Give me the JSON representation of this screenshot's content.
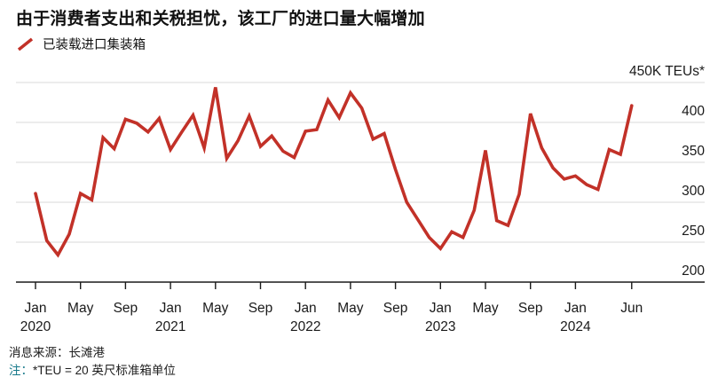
{
  "title": "由于消费者支出和关税担忧，该工厂的进口量大幅增加",
  "legend": {
    "label": "已装载进口集装箱"
  },
  "footer": {
    "source": "消息来源：长滩港",
    "note_prefix": "注：",
    "note_body": "*TEU = 20 英尺标准箱单位"
  },
  "colors": {
    "line": "#c23128",
    "grid": "#d8d8d8",
    "axis": "#1a1a1a",
    "tick_text": "#1a1a1a",
    "title_text": "#111111"
  },
  "chart_data": {
    "type": "line",
    "title": "由于消费者支出和关税担忧，该工厂的进口量大幅增加",
    "ylabel": "450K TEUs*",
    "xlabel": "",
    "ylim": [
      200,
      450
    ],
    "grid": true,
    "legend_position": "top-left",
    "y_ticks": [
      450,
      400,
      350,
      300,
      250,
      200
    ],
    "y_tick_labels": [
      "450K TEUs*",
      "400",
      "350",
      "300",
      "250",
      "200"
    ],
    "x_ticks": [
      {
        "month": "Jan",
        "year": "2020",
        "offset": 0
      },
      {
        "month": "May",
        "year": "",
        "offset": 4
      },
      {
        "month": "Sep",
        "year": "",
        "offset": 8
      },
      {
        "month": "Jan",
        "year": "2021",
        "offset": 12
      },
      {
        "month": "May",
        "year": "",
        "offset": 16
      },
      {
        "month": "Sep",
        "year": "",
        "offset": 20
      },
      {
        "month": "Jan",
        "year": "2022",
        "offset": 24
      },
      {
        "month": "May",
        "year": "",
        "offset": 28
      },
      {
        "month": "Sep",
        "year": "",
        "offset": 32
      },
      {
        "month": "Jan",
        "year": "2023",
        "offset": 36
      },
      {
        "month": "May",
        "year": "",
        "offset": 40
      },
      {
        "month": "Sep",
        "year": "",
        "offset": 44
      },
      {
        "month": "Jan",
        "year": "2024",
        "offset": 48
      },
      {
        "month": "Jun",
        "year": "",
        "offset": 53
      }
    ],
    "x_range": {
      "start": "Jan 2020",
      "end": "Jun 2024",
      "points": "monthly"
    },
    "series": [
      {
        "name": "已装载进口集装箱",
        "unit": "K TEUs",
        "values": [
          311,
          252,
          234,
          260,
          311,
          303,
          381,
          367,
          404,
          399,
          388,
          405,
          366,
          388,
          409,
          368,
          444,
          355,
          377,
          408,
          370,
          383,
          364,
          356,
          389,
          391,
          428,
          406,
          437,
          418,
          379,
          386,
          341,
          300,
          278,
          256,
          242,
          263,
          256,
          290,
          365,
          277,
          271,
          310,
          411,
          368,
          343,
          329,
          333,
          322,
          316,
          366,
          360,
          421
        ]
      }
    ]
  }
}
